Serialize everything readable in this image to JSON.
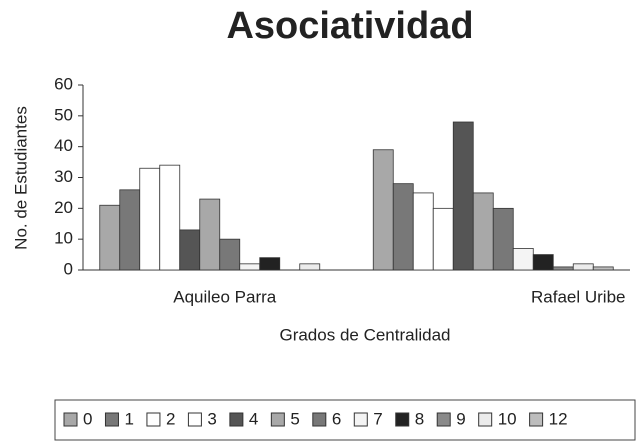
{
  "chart_data": {
    "type": "bar",
    "title": "Asociatividad",
    "x_label": "Grados de Centralidad",
    "y_label": "No. de Estudiantes",
    "categories": [
      "Aquileo Parra",
      "Rafael Uribe"
    ],
    "ylim": [
      0,
      60
    ],
    "yticks": [
      0,
      10,
      20,
      30,
      40,
      50,
      60
    ],
    "grid": false,
    "legend": "bottom",
    "series": [
      {
        "name": "0",
        "color": "#a8a8a8",
        "values": [
          21,
          39
        ]
      },
      {
        "name": "1",
        "color": "#787878",
        "values": [
          26,
          28
        ]
      },
      {
        "name": "2",
        "color": "#ffffff",
        "values": [
          33,
          25
        ]
      },
      {
        "name": "3",
        "color": "#ffffff",
        "values": [
          34,
          20
        ]
      },
      {
        "name": "4",
        "color": "#555555",
        "values": [
          13,
          48
        ]
      },
      {
        "name": "5",
        "color": "#a8a8a8",
        "values": [
          23,
          25
        ]
      },
      {
        "name": "6",
        "color": "#787878",
        "values": [
          10,
          20
        ]
      },
      {
        "name": "7",
        "color": "#f4f4f4",
        "values": [
          2,
          7
        ]
      },
      {
        "name": "8",
        "color": "#222222",
        "values": [
          4,
          5
        ]
      },
      {
        "name": "9",
        "color": "#8a8a8a",
        "values": [
          0,
          1
        ]
      },
      {
        "name": "10",
        "color": "#ececec",
        "values": [
          2,
          2
        ]
      },
      {
        "name": "12",
        "color": "#bdbdbd",
        "values": [
          0,
          1
        ]
      }
    ]
  }
}
